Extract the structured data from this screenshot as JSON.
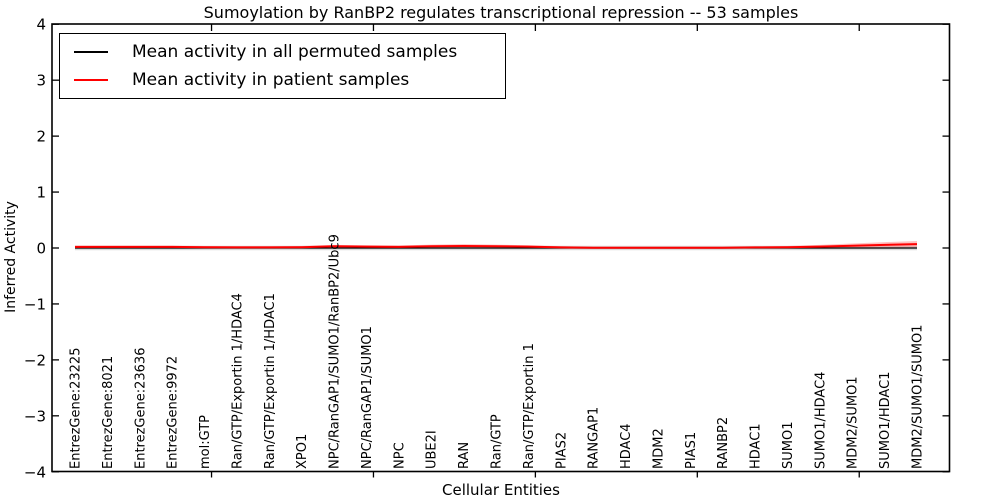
{
  "chart_data": {
    "type": "line",
    "title": "Sumoylation by RanBP2 regulates transcriptional repression -- 53 samples",
    "xlabel": "Cellular Entities",
    "ylabel": "Inferred Activity",
    "ylim": [
      -4,
      4
    ],
    "yticks": [
      4,
      3,
      2,
      1,
      0,
      -1,
      -2,
      -3,
      -4
    ],
    "grid": false,
    "legend_position": "upper left",
    "zero_line": {
      "y": 0,
      "style": "dotted",
      "color": "#000000"
    },
    "x_major_tick_indexes": [
      4,
      9,
      14,
      19,
      24
    ],
    "categories": [
      "EntrezGene:23225",
      "EntrezGene:8021",
      "EntrezGene:23636",
      "EntrezGene:9972",
      "mol:GTP",
      "Ran/GTP/Exportin 1/HDAC4",
      "Ran/GTP/Exportin 1/HDAC1",
      "XPO1",
      "NPC/RanGAP1/SUMO1/RanBP2/Ubc9",
      "NPC/RanGAP1/SUMO1",
      "NPC",
      "UBE2I",
      "RAN",
      "Ran/GTP",
      "Ran/GTP/Exportin 1",
      "PIAS2",
      "RANGAP1",
      "HDAC4",
      "MDM2",
      "PIAS1",
      "RANBP2",
      "HDAC1",
      "SUMO1",
      "SUMO1/HDAC4",
      "MDM2/SUMO1",
      "SUMO1/HDAC1",
      "MDM2/SUMO1/SUMO1"
    ],
    "series": [
      {
        "name": "Mean activity in all permuted samples",
        "color": "#000000",
        "values": [
          0,
          0,
          0,
          0,
          0,
          0,
          0,
          0,
          0,
          0,
          0,
          0,
          0,
          0,
          0,
          0,
          0,
          0,
          0,
          0,
          0,
          0,
          0,
          0,
          0,
          0,
          0
        ]
      },
      {
        "name": "Mean activity in patient samples",
        "color": "#ff0000",
        "values": [
          0.02,
          0.02,
          0.02,
          0.02,
          0.015,
          0.01,
          0.01,
          0.015,
          0.03,
          0.025,
          0.02,
          0.03,
          0.035,
          0.03,
          0.025,
          0.01,
          0.005,
          0.005,
          0.005,
          0.005,
          0.005,
          0.01,
          0.015,
          0.025,
          0.04,
          0.055,
          0.07
        ]
      }
    ],
    "bands": [
      {
        "series": "Mean activity in all permuted samples",
        "color": "#aaaaaa",
        "opacity": 0.45,
        "halfwidth": [
          0.04,
          0.04,
          0.04,
          0.04,
          0.04,
          0.04,
          0.04,
          0.04,
          0.04,
          0.04,
          0.04,
          0.04,
          0.04,
          0.04,
          0.04,
          0.04,
          0.04,
          0.04,
          0.04,
          0.04,
          0.04,
          0.04,
          0.04,
          0.04,
          0.04,
          0.04,
          0.04
        ]
      },
      {
        "series": "Mean activity in patient samples",
        "color": "#ff6666",
        "opacity": 0.4,
        "halfwidth": [
          0.02,
          0.02,
          0.02,
          0.02,
          0.02,
          0.02,
          0.02,
          0.02,
          0.025,
          0.025,
          0.025,
          0.03,
          0.035,
          0.03,
          0.025,
          0.02,
          0.015,
          0.015,
          0.015,
          0.015,
          0.015,
          0.015,
          0.02,
          0.03,
          0.04,
          0.05,
          0.055
        ]
      }
    ]
  }
}
